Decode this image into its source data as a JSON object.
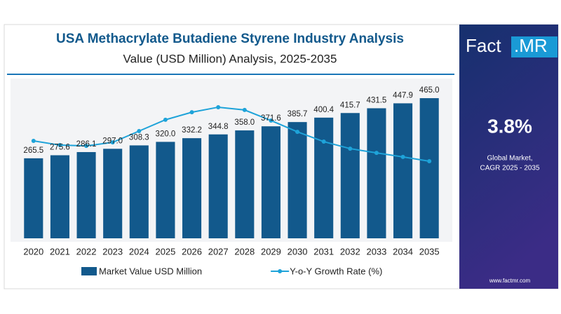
{
  "chart_data": {
    "type": "bar",
    "title": "USA Methacrylate Butadiene Styrene Industry Analysis",
    "subtitle": "Value (USD Million) Analysis, 2025-2035",
    "categories": [
      "2020",
      "2021",
      "2022",
      "2023",
      "2024",
      "2025",
      "2026",
      "2027",
      "2028",
      "2029",
      "2030",
      "2031",
      "2032",
      "2033",
      "2034",
      "2035"
    ],
    "series": [
      {
        "name": "Market Value USD Million",
        "type": "bar",
        "color": "#12598c",
        "values": [
          265.5,
          275.6,
          286.1,
          297.0,
          308.3,
          320.0,
          332.2,
          344.8,
          358.0,
          371.6,
          385.7,
          400.4,
          415.7,
          431.5,
          447.9,
          465.0
        ],
        "value_labels": [
          "265.5",
          "275.6",
          "286.1",
          "297.0",
          "308.3",
          "320.0",
          "332.2",
          "344.8",
          "358.0",
          "371.6",
          "385.7",
          "400.4",
          "415.7",
          "431.5",
          "447.9",
          "465.0"
        ]
      },
      {
        "name": "Y-o-Y Growth Rate (%)",
        "type": "line",
        "axis": "y2",
        "color": "#1ea3d9",
        "values": [
          3.88,
          3.71,
          3.68,
          3.82,
          4.27,
          4.72,
          5.02,
          5.22,
          5.11,
          4.69,
          4.24,
          3.85,
          3.57,
          3.4,
          3.24,
          3.07
        ]
      }
    ],
    "ylim": [
      0,
      500
    ],
    "y2lim": [
      0,
      6
    ],
    "legend": "bottom"
  },
  "sidebar": {
    "logo_left": "Fact",
    "logo_right": ".MR",
    "cagr": "3.8%",
    "cagr_label_1": "Global Market,",
    "cagr_label_2": "CAGR 2025 - 2035",
    "website": "www.factmr.com"
  }
}
